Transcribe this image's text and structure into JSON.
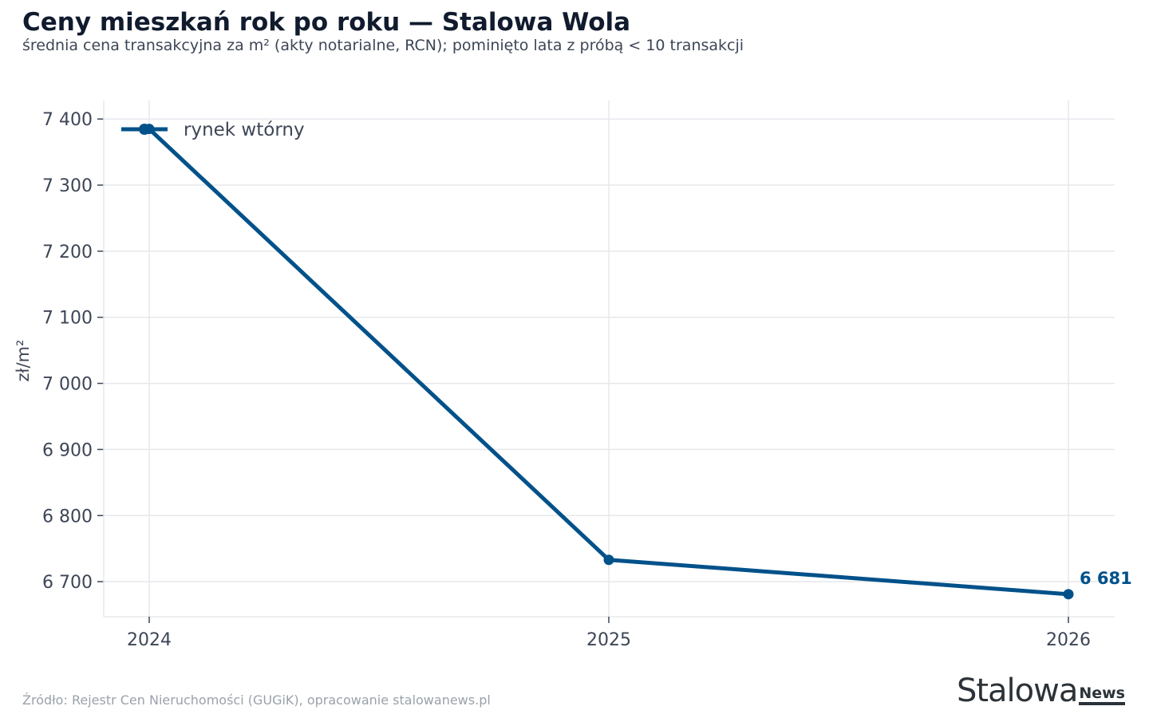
{
  "header": {
    "title": "Ceny mieszkań rok po roku — Stalowa Wola",
    "subtitle": "średnia cena transakcyjna za m² (akty notarialne, RCN); pominięto lata z próbą < 10 transakcji"
  },
  "footer": {
    "source": "Źródło: Rejestr Cen Nieruchomości (GUGiK), opracowanie stalowanews.pl",
    "logo_main": "Stalowa",
    "logo_sub": "News"
  },
  "colors": {
    "series": "#00518a",
    "grid": "#e6e8ec",
    "axis_text": "#3d4656"
  },
  "chart_data": {
    "type": "line",
    "title": "Ceny mieszkań rok po roku — Stalowa Wola",
    "subtitle": "średnia cena transakcyjna za m² (akty notarialne, RCN); pominięto lata z próbą < 10 transakcji",
    "xlabel": "",
    "ylabel": "zł/m²",
    "x": [
      2024,
      2025,
      2026
    ],
    "x_tick_labels": [
      "2024",
      "2025",
      "2026"
    ],
    "ylim": [
      6647,
      7428
    ],
    "y_ticks": [
      6700,
      6800,
      6900,
      7000,
      7100,
      7200,
      7300,
      7400
    ],
    "y_tick_labels": [
      "6 700",
      "6 800",
      "6 900",
      "7 000",
      "7 100",
      "7 200",
      "7 300",
      "7 400"
    ],
    "grid": true,
    "legend_position": "top-left",
    "series": [
      {
        "name": "rynek wtórny",
        "values": [
          7385,
          6733,
          6681
        ],
        "end_label": "6 681"
      }
    ]
  }
}
